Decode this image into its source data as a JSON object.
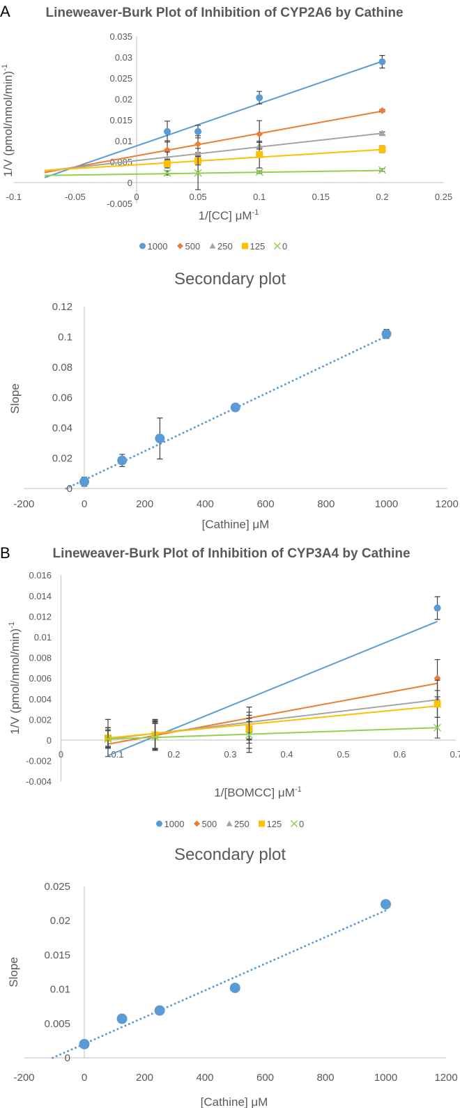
{
  "panels": {
    "a": "A",
    "b": "B"
  },
  "chart_data": [
    {
      "type": "line",
      "title": "Lineweaver-Burk Plot of Inhibition of CYP2A6 by Cathine",
      "xlabel": "1/[CC] μM",
      "xlabel_sup": "-1",
      "ylabel": "1/V (pmol/nmol/min)",
      "ylabel_sup": "-1",
      "xlim": [
        -0.1,
        0.25
      ],
      "ylim": [
        -0.005,
        0.035
      ],
      "x_ticks": [
        -0.1,
        -0.05,
        0,
        0.05,
        0.1,
        0.15,
        0.2,
        0.25
      ],
      "y_ticks": [
        -0.005,
        0,
        0.005,
        0.01,
        0.015,
        0.02,
        0.025,
        0.03,
        0.035
      ],
      "grid": false,
      "legend_position": "bottom",
      "x": [
        0.025,
        0.05,
        0.1,
        0.2
      ],
      "series": [
        {
          "name": "1000",
          "marker": "circle",
          "color": "#5B9BD5",
          "values": [
            0.0122,
            0.0122,
            0.0203,
            0.0289
          ],
          "error": [
            0.0025,
            0.0015,
            0.0015,
            0.0015
          ],
          "trendline": {
            "slope": 0.1011,
            "intercept": 0.00878,
            "x_range": [
              -0.075,
              0.2
            ]
          }
        },
        {
          "name": "500",
          "marker": "diamond",
          "color": "#ED7D31",
          "values": [
            0.0078,
            0.0092,
            0.0116,
            0.0172
          ],
          "error": [
            0.0022,
            0.002,
            0.0032,
            0.0003
          ],
          "trendline": {
            "slope": 0.05345,
            "intercept": 0.0064,
            "x_range": [
              -0.075,
              0.2
            ]
          }
        },
        {
          "name": "250",
          "marker": "triangle",
          "color": "#A5A5A5",
          "values": [
            0.0058,
            0.007,
            0.0088,
            0.0118
          ],
          "error": [
            0.0015,
            0.0012,
            0.0008,
            0.0003
          ],
          "trendline": {
            "slope": 0.03273,
            "intercept": 0.00525,
            "x_range": [
              -0.075,
              0.2
            ]
          }
        },
        {
          "name": "125",
          "marker": "square",
          "color": "#FFC000",
          "values": [
            0.0045,
            0.0052,
            0.0067,
            0.008
          ],
          "error": [
            0.001,
            0.001,
            0.0032,
            0.0008
          ],
          "trendline": {
            "slope": 0.01818,
            "intercept": 0.00426,
            "x_range": [
              -0.075,
              0.2
            ]
          }
        },
        {
          "name": "0",
          "marker": "x",
          "color": "#92D050",
          "values": [
            0.0023,
            0.0023,
            0.0025,
            0.003
          ],
          "error": [
            0.0005,
            0.004,
            0.0003,
            0.0003
          ],
          "trendline": {
            "slope": 0.00436,
            "intercept": 0.00203,
            "x_range": [
              -0.075,
              0.2
            ]
          }
        }
      ]
    },
    {
      "type": "scatter",
      "title": "Secondary plot",
      "xlabel": "[Cathine] μM",
      "ylabel": "Slope",
      "xlim": [
        -200,
        1200
      ],
      "ylim": [
        0,
        0.12
      ],
      "x_ticks": [
        -200,
        0,
        200,
        400,
        600,
        800,
        1000,
        1200
      ],
      "y_ticks": [
        0,
        0.02,
        0.04,
        0.06,
        0.08,
        0.1,
        0.12
      ],
      "grid": false,
      "x": [
        0,
        125,
        250,
        500,
        1000
      ],
      "series": [
        {
          "marker": "circle",
          "color": "#5B9BD5",
          "values": [
            0.0045,
            0.0185,
            0.033,
            0.0535,
            0.102
          ],
          "error": [
            0.003,
            0.004,
            0.0135,
            0.0008,
            0.003
          ],
          "trendline": {
            "slope": 9.48e-05,
            "intercept": 0.00569,
            "x_range": [
              -60,
              1000
            ],
            "style": "dotted"
          }
        }
      ]
    },
    {
      "type": "line",
      "title": "Lineweaver-Burk Plot of Inhibition of CYP3A4 by Cathine",
      "xlabel": "1/[BOMCC] μM",
      "xlabel_sup": "-1",
      "ylabel": "1/V (pmol/nmol/min)",
      "ylabel_sup": "-1",
      "xlim": [
        0,
        0.7
      ],
      "ylim": [
        -0.004,
        0.016
      ],
      "x_ticks": [
        0,
        0.1,
        0.2,
        0.3,
        0.4,
        0.5,
        0.6,
        0.7
      ],
      "y_ticks": [
        -0.004,
        -0.002,
        0,
        0.002,
        0.004,
        0.006,
        0.008,
        0.01,
        0.012,
        0.014,
        0.016
      ],
      "grid": false,
      "legend_position": "bottom",
      "x": [
        0.0833,
        0.1667,
        0.3333,
        0.6667
      ],
      "series": [
        {
          "name": "1000",
          "marker": "circle",
          "color": "#5B9BD5",
          "values": [
            0.0002,
            0.0005,
            0.001,
            0.0128
          ],
          "error": [
            0.0018,
            0.0014,
            0.0022,
            0.0011
          ],
          "trendline": {
            "slope": 0.02229,
            "intercept": -0.00336,
            "x_range": [
              0.0833,
              0.6667
            ]
          }
        },
        {
          "name": "500",
          "marker": "diamond",
          "color": "#ED7D31",
          "values": [
            0.0002,
            0.0005,
            0.0012,
            0.006
          ],
          "error": [
            0.001,
            0.0015,
            0.0015,
            0.0018
          ],
          "trendline": {
            "slope": 0.01011,
            "intercept": -0.00124,
            "x_range": [
              0.0833,
              0.6667
            ]
          }
        },
        {
          "name": "250",
          "marker": "triangle",
          "color": "#A5A5A5",
          "values": [
            0.0002,
            0.0004,
            0.0012,
            0.004
          ],
          "error": [
            0.001,
            0.0013,
            0.0012,
            0.0018
          ],
          "trendline": {
            "slope": 0.006514,
            "intercept": -0.000443,
            "x_range": [
              0.0833,
              0.6667
            ]
          }
        },
        {
          "name": "125",
          "marker": "square",
          "color": "#FFC000",
          "values": [
            0.0002,
            0.0005,
            0.0011,
            0.0035
          ],
          "error": [
            0.0008,
            0.0013,
            0.001,
            0.0013
          ],
          "trendline": {
            "slope": 0.005314,
            "intercept": -0.000243,
            "x_range": [
              0.0833,
              0.6667
            ]
          }
        },
        {
          "name": "0",
          "marker": "x",
          "color": "#92D050",
          "values": [
            0.0001,
            0.0003,
            0.0005,
            0.0012
          ],
          "error": [
            0.0008,
            0.0013,
            0.0013,
            0.001
          ],
          "trendline": {
            "slope": 0.001886,
            "intercept": -5.7e-05,
            "x_range": [
              0.0833,
              0.6667
            ]
          }
        }
      ]
    },
    {
      "type": "scatter",
      "title": "Secondary plot",
      "xlabel": "[Cathine] μM",
      "ylabel": "Slope",
      "xlim": [
        -200,
        1200
      ],
      "ylim": [
        0,
        0.025
      ],
      "x_ticks": [
        -200,
        0,
        200,
        400,
        600,
        800,
        1000,
        1200
      ],
      "y_ticks": [
        0,
        0.005,
        0.01,
        0.015,
        0.02,
        0.025
      ],
      "grid": false,
      "x": [
        0,
        125,
        250,
        500,
        1000
      ],
      "series": [
        {
          "marker": "circle",
          "color": "#5B9BD5",
          "values": [
            0.002,
            0.0057,
            0.0069,
            0.0102,
            0.0224
          ],
          "trendline": {
            "slope": 1.946e-05,
            "intercept": 0.00204,
            "x_range": [
              -105,
              1000
            ],
            "style": "dotted"
          }
        }
      ]
    }
  ]
}
